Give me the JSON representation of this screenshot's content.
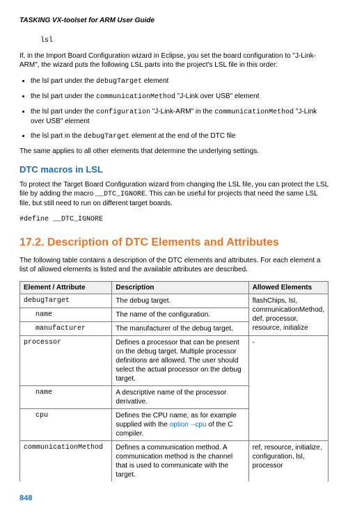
{
  "header": "TASKING VX-toolset for ARM User Guide",
  "codeLine": "lsl",
  "para1a": "If, in the Import Board Configuration wizard in Eclipse, you set the board configuration to \"J-Link-ARM\", the wizard puts the following LSL parts into the project's LSL file in this order:",
  "bullets": [
    {
      "pre": "the lsl part under the ",
      "code": "debugTarget",
      "post": " element"
    },
    {
      "pre": "the lsl part under the ",
      "code": "communicationMethod",
      "post": " \"J-Link over USB\" element"
    },
    {
      "pre": "the lsl part under the ",
      "code": "configuration",
      "mid": " \"J-Link-ARM\" in the ",
      "code2": "communicationMethod",
      "post": " \"J-Link over USB\" element"
    },
    {
      "pre": "the lsl part in the ",
      "code": "debugTarget",
      "post": " element at the end of the DTC file"
    }
  ],
  "para2": "The same applies to all other elements that determine the underlying settings.",
  "h3": "DTC macros in LSL",
  "para3a": "To protect the Target Board Configuration wizard from changing the LSL file, you can protect the LSL file by adding the macro ",
  "para3code": "__DTC_IGNORE",
  "para3b": ". This can be useful for projects that need the same LSL file, but still need to run on different target boards.",
  "defineLine": "#define __DTC_IGNORE",
  "h2": "17.2. Description of DTC Elements and Attributes",
  "para4": "The following table contains a description of the DTC elements and attributes. For each element a list of allowed elements is listed and the available attributes are described.",
  "table": {
    "headers": [
      "Element / Attribute",
      "Description",
      "Allowed Elements"
    ],
    "groups": [
      {
        "allowed": "flashChips, lsl, communicationMethod, def, processor, resource, initialize",
        "rows": [
          {
            "name": "debugTarget",
            "indent": false,
            "desc": "The debug target."
          },
          {
            "name": "name",
            "indent": true,
            "desc": "The name of the configuration."
          },
          {
            "name": "manufacturer",
            "indent": true,
            "desc": "The manufacturer of the debug target."
          }
        ]
      },
      {
        "allowed": "-",
        "rows": [
          {
            "name": "processor",
            "indent": false,
            "desc": "Defines a processor that can be present on the debug target. Multiple processor definitions are allowed. The user should select the actual processor on the debug target."
          },
          {
            "name": "name",
            "indent": true,
            "desc": "A descriptive name of the processor derivative."
          },
          {
            "name": "cpu",
            "indent": true,
            "descPre": "Defines the CPU name, as for example supplied with the ",
            "descLink": "option --cpu",
            "descPost": " of the C compiler."
          }
        ]
      },
      {
        "allowed": "ref, resource, initialize, configuration, lsl, processor",
        "rows": [
          {
            "name": "communicationMethod",
            "indent": false,
            "desc": "Defines a communication method. A communication method is the channel that is used to communicate with the target."
          }
        ]
      }
    ]
  },
  "pageNum": "848"
}
